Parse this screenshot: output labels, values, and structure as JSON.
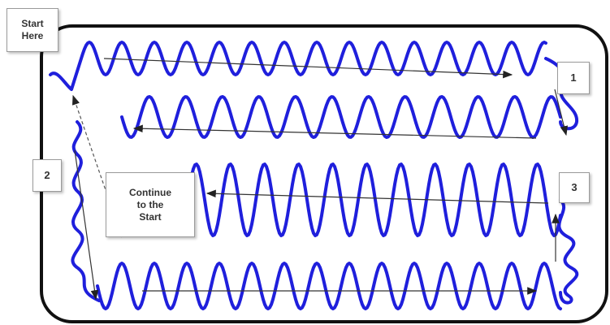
{
  "labels": {
    "start": "Start\nHere",
    "step1": "1",
    "step2": "2",
    "step3": "3",
    "continue": "Continue\nto the\nStart"
  },
  "colors": {
    "wave": "#1f1fdc",
    "border": "#111111",
    "arrow": "#333333"
  }
}
